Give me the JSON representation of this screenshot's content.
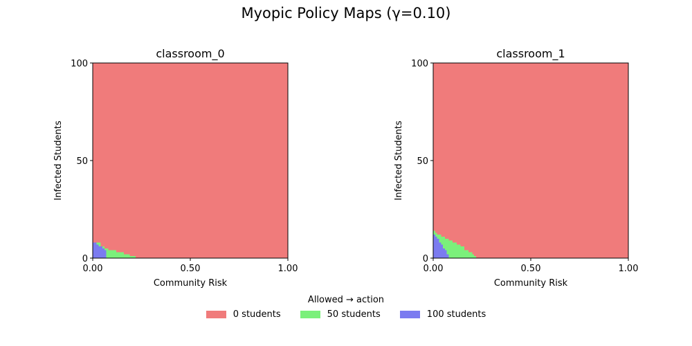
{
  "chart_data": {
    "type": "heatmap",
    "title": "Myopic Policy Maps (γ=0.10)",
    "colors": {
      "0": "#f07b7b",
      "50": "#7bf07b",
      "100": "#7b7bf0"
    },
    "legend": {
      "title": "Allowed → action",
      "placement": "bottom-center",
      "items": [
        {
          "label": "0 students",
          "value": 0
        },
        {
          "label": "50 students",
          "value": 50
        },
        {
          "label": "100 students",
          "value": 100
        }
      ]
    },
    "panels": [
      {
        "title": "classroom_0",
        "xlabel": "Community Risk",
        "ylabel": "Infected Students",
        "xlim": [
          0,
          1
        ],
        "ylim": [
          0,
          100
        ],
        "xticks": [
          "0.00",
          "0.50",
          "1.00"
        ],
        "xtick_values": [
          0,
          0.5,
          1
        ],
        "yticks": [
          "0",
          "50",
          "100"
        ],
        "ytick_values": [
          0,
          50,
          100
        ],
        "default_action": 0,
        "green_boundary": [
          [
            0,
            8
          ],
          [
            0.04,
            6
          ],
          [
            0.06,
            5
          ],
          [
            0.08,
            4
          ],
          [
            0.12,
            3
          ],
          [
            0.16,
            2
          ],
          [
            0.19,
            1
          ],
          [
            0.22,
            0
          ]
        ],
        "blue_boundary": [
          [
            0,
            8
          ],
          [
            0.02,
            7
          ],
          [
            0.03,
            6
          ],
          [
            0.05,
            5
          ],
          [
            0.06,
            4
          ],
          [
            0.07,
            0
          ]
        ]
      },
      {
        "title": "classroom_1",
        "xlabel": "Community Risk",
        "ylabel": "Infected Students",
        "xlim": [
          0,
          1
        ],
        "ylim": [
          0,
          100
        ],
        "xticks": [
          "0.00",
          "0.50",
          "1.00"
        ],
        "xtick_values": [
          0,
          0.5,
          1
        ],
        "yticks": [
          "0",
          "50",
          "100"
        ],
        "ytick_values": [
          0,
          50,
          100
        ],
        "default_action": 0,
        "green_boundary": [
          [
            0,
            14
          ],
          [
            0.01,
            13
          ],
          [
            0.02,
            12
          ],
          [
            0.04,
            11
          ],
          [
            0.06,
            10
          ],
          [
            0.08,
            9
          ],
          [
            0.1,
            8
          ],
          [
            0.12,
            7
          ],
          [
            0.14,
            6
          ],
          [
            0.16,
            4
          ],
          [
            0.18,
            3
          ],
          [
            0.2,
            2
          ],
          [
            0.21,
            1
          ],
          [
            0.22,
            0
          ]
        ],
        "blue_boundary": [
          [
            0,
            12
          ],
          [
            0.01,
            11
          ],
          [
            0.02,
            10
          ],
          [
            0.03,
            8
          ],
          [
            0.04,
            7
          ],
          [
            0.05,
            5
          ],
          [
            0.06,
            4
          ],
          [
            0.07,
            2
          ],
          [
            0.08,
            0
          ]
        ]
      }
    ]
  }
}
